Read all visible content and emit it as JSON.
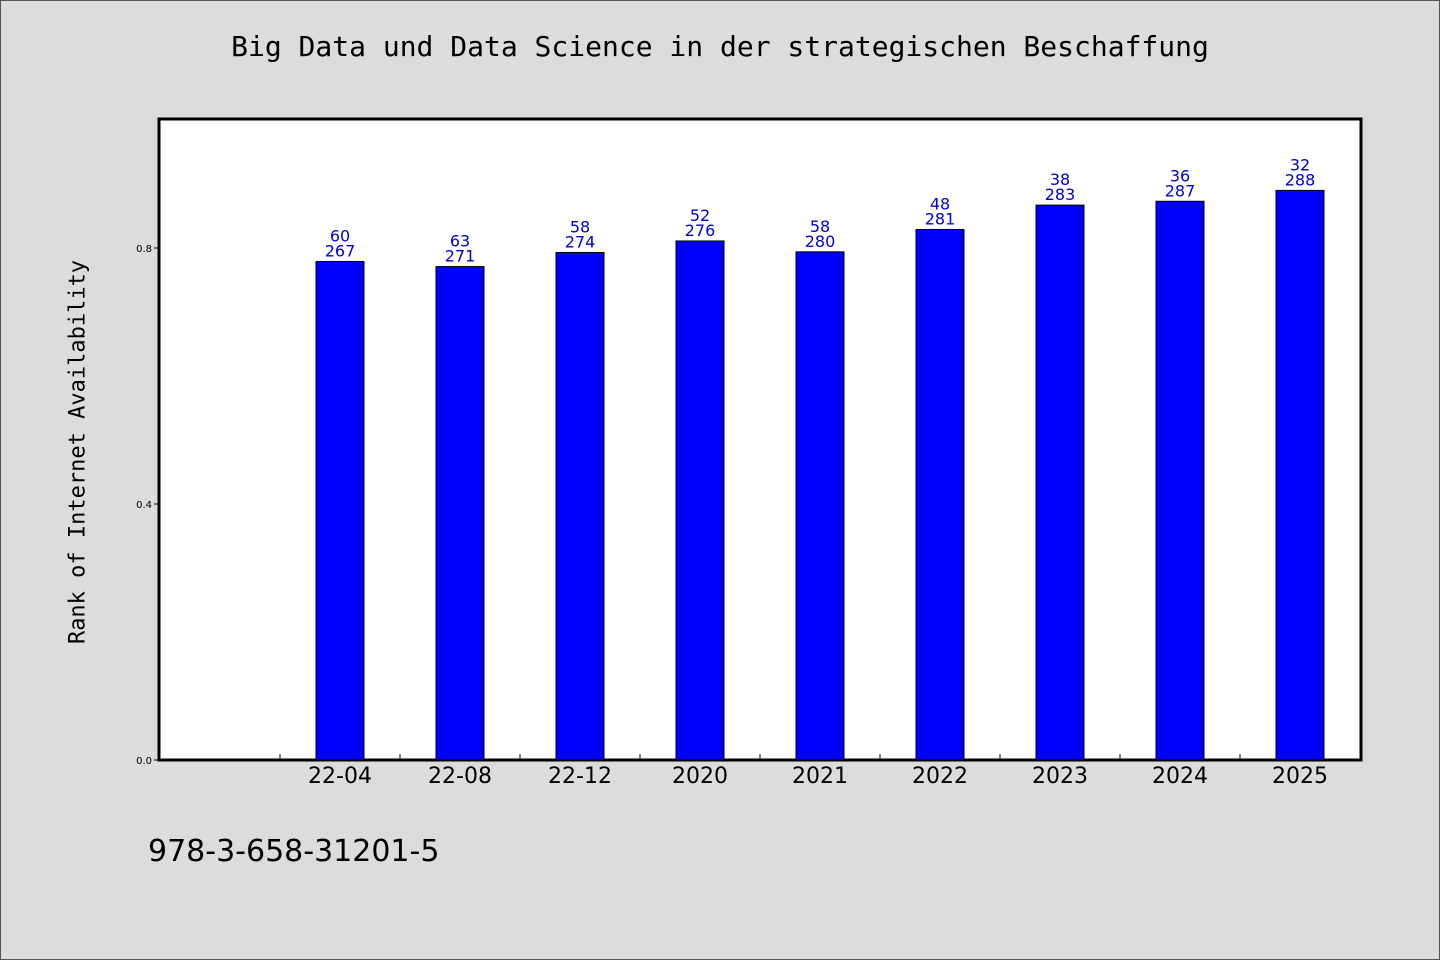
{
  "page": {
    "background": "#dcdcdc",
    "isbn": "978-3-658-31201-5"
  },
  "chart_data": {
    "type": "bar",
    "title": "Big Data und Data Science in der strategischen Beschaffung",
    "xlabel": "",
    "ylabel": "Rank of Internet Availability",
    "ylim": [
      0,
      1.0
    ],
    "y_ticks": [
      {
        "value": 0.0,
        "label": "0.0"
      },
      {
        "value": 0.4,
        "label": "0.4"
      },
      {
        "value": 0.8,
        "label": "0.8"
      }
    ],
    "categories": [
      "22-04",
      "22-08",
      "22-12",
      "2020",
      "2021",
      "2022",
      "2023",
      "2024",
      "2025"
    ],
    "values": [
      0.779,
      0.771,
      0.793,
      0.811,
      0.794,
      0.829,
      0.867,
      0.873,
      0.89
    ],
    "label_top": [
      "60",
      "63",
      "58",
      "52",
      "58",
      "48",
      "38",
      "36",
      "32"
    ],
    "label_bottom": [
      "267",
      "271",
      "274",
      "276",
      "280",
      "281",
      "283",
      "287",
      "288"
    ],
    "bar_color": "#0000ff",
    "label_color": "#0000cc",
    "grid": false,
    "legend": "none"
  }
}
